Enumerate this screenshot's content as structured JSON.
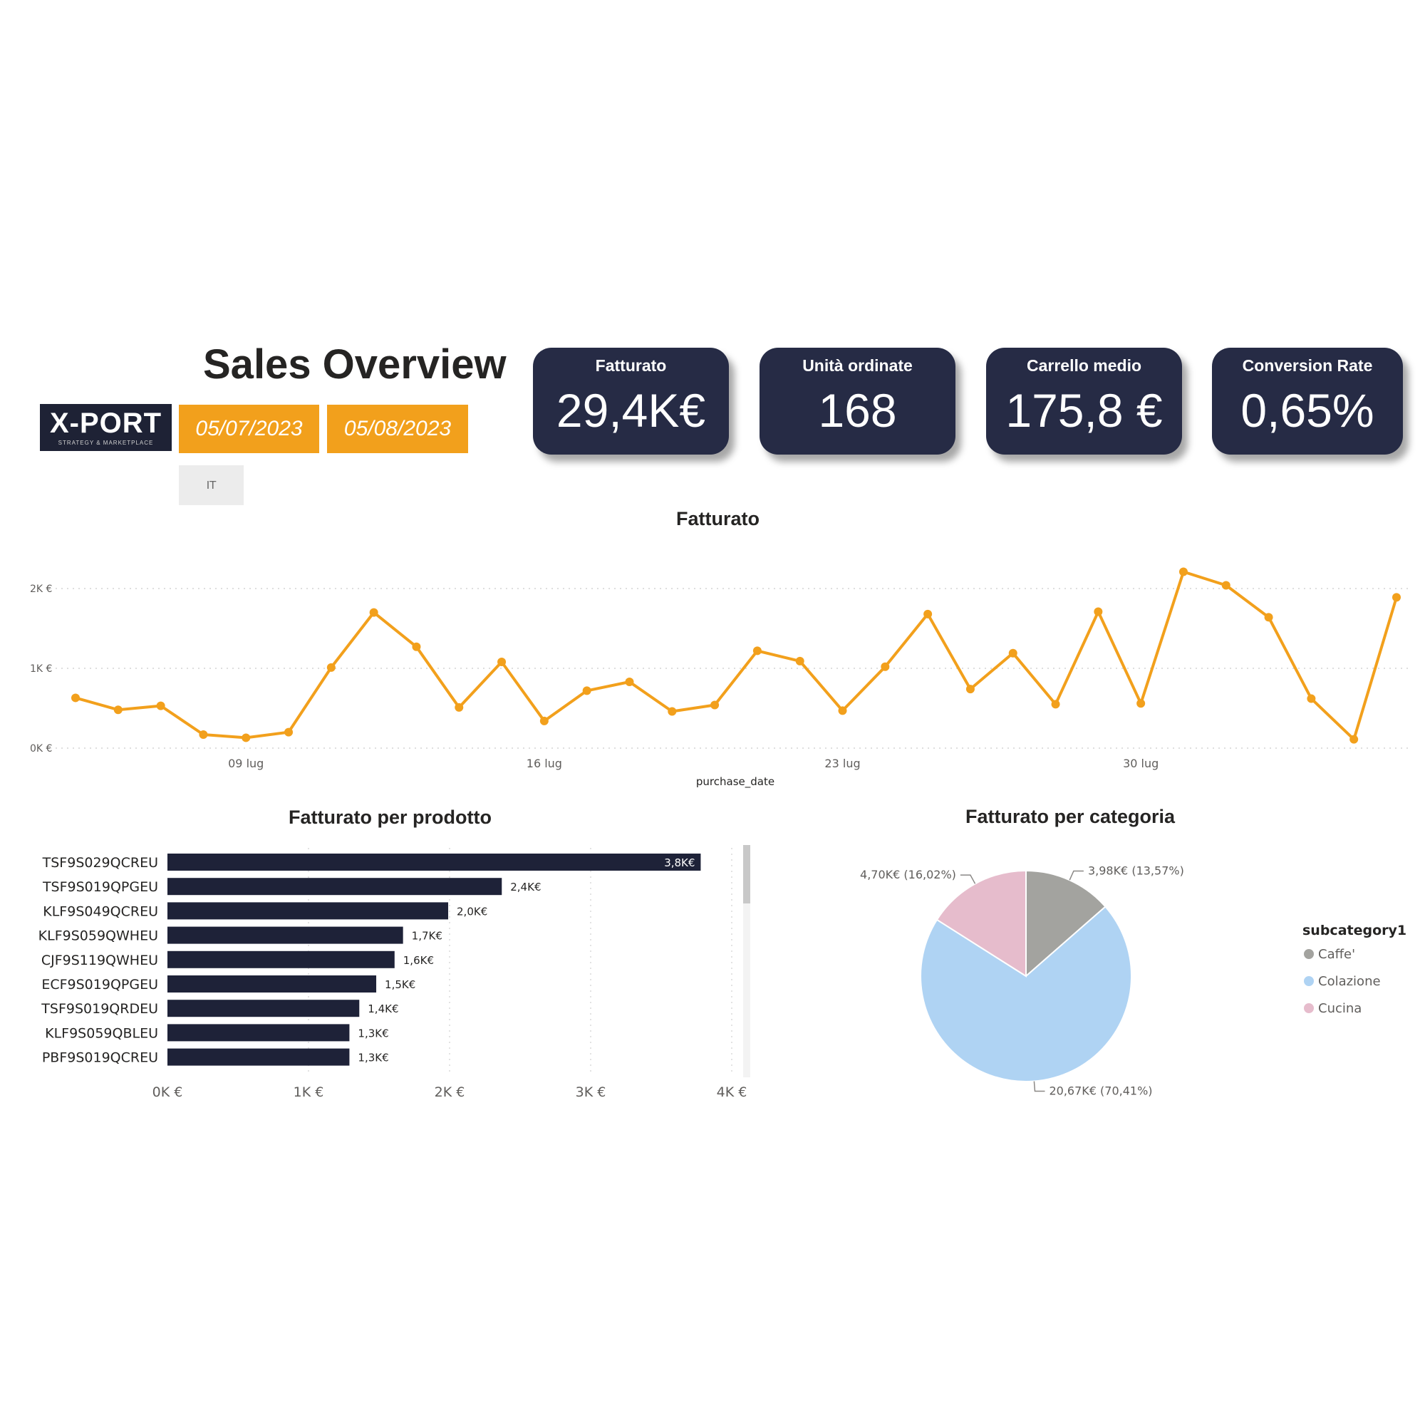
{
  "header": {
    "title": "Sales Overview",
    "logo_text": "X-PORT",
    "logo_tagline": "STRATEGY & MARKETPLACE",
    "date_start": "05/07/2023",
    "date_end": "05/08/2023",
    "country": "IT"
  },
  "kpis": [
    {
      "label": "Fatturato",
      "value": "29,4K€"
    },
    {
      "label": "Unità ordinate",
      "value": "168"
    },
    {
      "label": "Carrello medio",
      "value": "175,8 €"
    },
    {
      "label": "Conversion Rate",
      "value": "0,65%"
    }
  ],
  "colors": {
    "navy": "#262b45",
    "orange": "#f2a01c",
    "bar": "#1e2238",
    "caffe": "#a3a39f",
    "colazione": "#afd3f3",
    "cucina": "#e6bccc"
  },
  "chart_data": [
    {
      "type": "line",
      "title": "Fatturato",
      "xlabel": "purchase_date",
      "ylabel": "",
      "ylim": [
        0,
        2000
      ],
      "y_ticks": [
        "0K €",
        "1K €",
        "2K €"
      ],
      "x_ticks": [
        {
          "label": "09 lug",
          "date": "2023-07-09"
        },
        {
          "label": "16 lug",
          "date": "2023-07-16"
        },
        {
          "label": "23 lug",
          "date": "2023-07-23"
        },
        {
          "label": "30 lug",
          "date": "2023-07-30"
        }
      ],
      "x": [
        "2023-07-05",
        "2023-07-06",
        "2023-07-07",
        "2023-07-08",
        "2023-07-09",
        "2023-07-10",
        "2023-07-11",
        "2023-07-12",
        "2023-07-13",
        "2023-07-14",
        "2023-07-15",
        "2023-07-16",
        "2023-07-17",
        "2023-07-18",
        "2023-07-19",
        "2023-07-20",
        "2023-07-21",
        "2023-07-22",
        "2023-07-23",
        "2023-07-24",
        "2023-07-25",
        "2023-07-26",
        "2023-07-27",
        "2023-07-28",
        "2023-07-29",
        "2023-07-30",
        "2023-07-31",
        "2023-08-01",
        "2023-08-02",
        "2023-08-03",
        "2023-08-04",
        "2023-08-05"
      ],
      "series": [
        {
          "values": [
            630,
            480,
            530,
            170,
            130,
            200,
            1010,
            1700,
            1270,
            510,
            1080,
            340,
            720,
            830,
            460,
            540,
            1220,
            1090,
            470,
            1020,
            1680,
            740,
            1190,
            550,
            1710,
            560,
            2210,
            2040,
            1640,
            620,
            110,
            1890
          ]
        }
      ],
      "color": "#f2a01c",
      "grid": true
    },
    {
      "type": "bar",
      "orientation": "horizontal",
      "title": "Fatturato per prodotto",
      "categories": [
        "TSF9S029QCREU",
        "TSF9S019QPGEU",
        "KLF9S049QCREU",
        "KLF9S059QWHEU",
        "CJF9S119QWHEU",
        "ECF9S019QPGEU",
        "TSF9S019QRDEU",
        "KLF9S059QBLEU",
        "PBF9S019QCREU"
      ],
      "values": [
        3780,
        2370,
        1990,
        1670,
        1610,
        1480,
        1360,
        1290,
        1290
      ],
      "data_labels": [
        "3,8K€",
        "2,4K€",
        "2,0K€",
        "1,7K€",
        "1,6K€",
        "1,5K€",
        "1,4K€",
        "1,3K€",
        "1,3K€"
      ],
      "x_ticks": [
        "0K €",
        "1K €",
        "2K €",
        "3K €",
        "4K €"
      ],
      "xlim": [
        0,
        4000
      ],
      "grid": true
    },
    {
      "type": "pie",
      "title": "Fatturato per categoria",
      "legend_title": "subcategory1",
      "legend_position": "right",
      "slices": [
        {
          "name": "Caffe'",
          "value": 3.98,
          "percent": 13.57,
          "label": "3,98K€ (13,57%)",
          "color": "#a3a39f"
        },
        {
          "name": "Colazione",
          "value": 20.67,
          "percent": 70.41,
          "label": "20,67K€ (70,41%)",
          "color": "#afd3f3"
        },
        {
          "name": "Cucina",
          "value": 4.7,
          "percent": 16.02,
          "label": "4,70K€ (16,02%)",
          "color": "#e6bccc"
        }
      ]
    }
  ]
}
